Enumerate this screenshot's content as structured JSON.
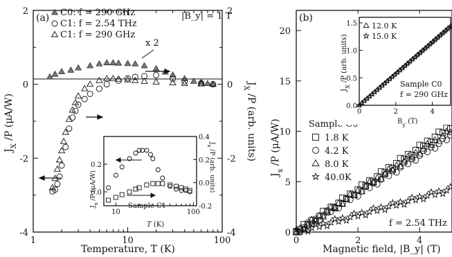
{
  "chart_data": [
    {
      "panel": "(a)",
      "type": "scatter",
      "xscale": "log",
      "xlim": [
        1,
        100
      ],
      "ylim": [
        -4,
        2
      ],
      "y2lim": [
        -4,
        2
      ],
      "xlabel": "Temperature, T (K)",
      "ylabel": "J_X /P (μA/W)",
      "y2label": "J_X /P (arb. units)",
      "xticks": [
        "1",
        "10",
        "100"
      ],
      "yticks": [
        "-4",
        "-2",
        "0",
        "2"
      ],
      "y2ticks": [
        "-4",
        "-2",
        "0",
        "2"
      ],
      "field_label": "|B_y| = 1 T",
      "multiplier_label": "x 2",
      "legend": [
        {
          "symbol": "▲",
          "text": "C0: f = 290 GHz"
        },
        {
          "symbol": "○",
          "text": "C1: f = 2.54 THz"
        },
        {
          "symbol": "△",
          "text": "C1: f = 290 GHz"
        }
      ],
      "series": [
        {
          "name": "C0: f = 290 GHz",
          "marker": "filled-triangle",
          "x": [
            1.5,
            1.7,
            2.0,
            2.5,
            3,
            4,
            5,
            6,
            7,
            8,
            10,
            12,
            15,
            20,
            25,
            30,
            40,
            50,
            60,
            70,
            80
          ],
          "y": [
            0.2,
            0.27,
            0.34,
            0.38,
            0.44,
            0.5,
            0.55,
            0.58,
            0.58,
            0.57,
            0.56,
            0.55,
            0.5,
            0.42,
            0.33,
            0.25,
            0.15,
            0.08,
            0.05,
            0.02,
            0.0
          ]
        },
        {
          "name": "C1: f = 2.54 THz",
          "marker": "open-circle",
          "x": [
            1.6,
            1.7,
            1.8,
            1.9,
            2.0,
            2.2,
            2.4,
            2.6,
            2.8,
            3,
            3.5,
            4,
            5,
            6,
            8,
            10,
            12,
            15,
            20,
            30,
            40,
            60,
            80
          ],
          "y": [
            -2.9,
            -2.85,
            -2.7,
            -2.5,
            -2.2,
            -1.7,
            -1.2,
            -0.9,
            -0.72,
            -0.55,
            -0.4,
            -0.26,
            -0.12,
            0.0,
            0.1,
            0.16,
            0.2,
            0.22,
            0.25,
            0.15,
            0.08,
            0.03,
            0.0
          ]
        },
        {
          "name": "C1: f = 290 GHz",
          "marker": "open-triangle",
          "x": [
            1.6,
            1.7,
            1.8,
            1.9,
            2.0,
            2.1,
            2.2,
            2.4,
            2.6,
            2.8,
            3.0,
            3.5,
            4,
            5,
            6,
            7,
            8,
            10,
            12,
            15,
            20,
            30,
            40,
            60,
            80
          ],
          "y": [
            -2.8,
            -2.55,
            -2.3,
            -2.05,
            -1.8,
            -1.55,
            -1.3,
            -0.95,
            -0.7,
            -0.5,
            -0.32,
            -0.12,
            0.0,
            0.1,
            0.15,
            0.15,
            0.14,
            0.12,
            0.1,
            0.08,
            0.06,
            0.04,
            0.02,
            0.01,
            0.0
          ]
        }
      ],
      "inset": {
        "type": "scatter",
        "xscale": "log",
        "xlim": [
          7,
          110
        ],
        "ylim": [
          -0.1,
          0.4
        ],
        "y2lim": [
          -0.2,
          0.4
        ],
        "xlabel": "T (K)",
        "ylabel": "J_x /P (μA/W)",
        "y2label": "J_x /P (arb. units)",
        "xticks": [
          "10",
          "100"
        ],
        "yticks": [
          "0.0",
          "0.2"
        ],
        "y2ticks": [
          "-0.2",
          "0.0",
          "0.2",
          "0.4"
        ],
        "sample_label": "Sample C1",
        "series": [
          {
            "name": "upper",
            "marker": "open-circle",
            "x": [
              8,
              10,
              12,
              15,
              18,
              20,
              22,
              25,
              28,
              30,
              35,
              40,
              50,
              60,
              70,
              80,
              90
            ],
            "y": [
              0.03,
              0.12,
              0.18,
              0.24,
              0.28,
              0.3,
              0.3,
              0.3,
              0.27,
              0.24,
              0.16,
              0.1,
              0.04,
              0.02,
              0.01,
              0.01,
              0.0
            ]
          },
          {
            "name": "lower",
            "marker": "open-square",
            "x": [
              8,
              10,
              12,
              15,
              18,
              20,
              25,
              30,
              35,
              40,
              50,
              60,
              70,
              80,
              90
            ],
            "y": [
              -0.06,
              -0.04,
              -0.02,
              0.0,
              0.02,
              0.03,
              0.05,
              0.06,
              0.06,
              0.06,
              0.05,
              0.04,
              0.03,
              0.02,
              0.01
            ]
          }
        ]
      }
    },
    {
      "panel": "(b)",
      "type": "scatter",
      "xlim": [
        0,
        5
      ],
      "ylim": [
        0,
        22
      ],
      "xlabel": "Magnetic field, |B_y| (T)",
      "ylabel": "J_x /P (μA/W)",
      "xticks": [
        "0",
        "2",
        "4"
      ],
      "yticks": [
        "0",
        "5",
        "10",
        "15",
        "20"
      ],
      "sample_label": "Sample C0",
      "freq_label": "f = 2.54 THz",
      "legend": [
        {
          "symbol": "□",
          "text": "1.8 K"
        },
        {
          "symbol": "○",
          "text": "4.2 K"
        },
        {
          "symbol": "△",
          "text": "8.0 K"
        },
        {
          "symbol": "☆",
          "text": "40.0K"
        }
      ],
      "series": [
        {
          "name": "1.8 K",
          "marker": "open-square",
          "slope": 2.1
        },
        {
          "name": "4.2 K",
          "marker": "open-circle",
          "slope": 1.9
        },
        {
          "name": "8.0 K",
          "marker": "open-triangle",
          "slope": 2.0
        },
        {
          "name": "40.0K",
          "marker": "open-star",
          "slope": 0.85
        }
      ],
      "inset": {
        "type": "scatter",
        "xlim": [
          0,
          5
        ],
        "ylim": [
          0,
          1.6
        ],
        "xlabel": "B_y (T)",
        "ylabel": "J_x /P (arb. units)",
        "xticks": [
          "0",
          "2",
          "4"
        ],
        "yticks": [
          "0.0",
          "0.5",
          "1.0",
          "1.5"
        ],
        "sample_label": "Sample C0",
        "freq_label": "f = 290 GHz",
        "legend": [
          {
            "symbol": "△",
            "text": "12.0 K"
          },
          {
            "symbol": "☆",
            "text": "15.0 K"
          }
        ],
        "series": [
          {
            "name": "12.0 K",
            "marker": "open-triangle",
            "slope": 0.29
          },
          {
            "name": "15.0 K",
            "marker": "open-star",
            "slope": 0.285
          }
        ]
      }
    }
  ]
}
